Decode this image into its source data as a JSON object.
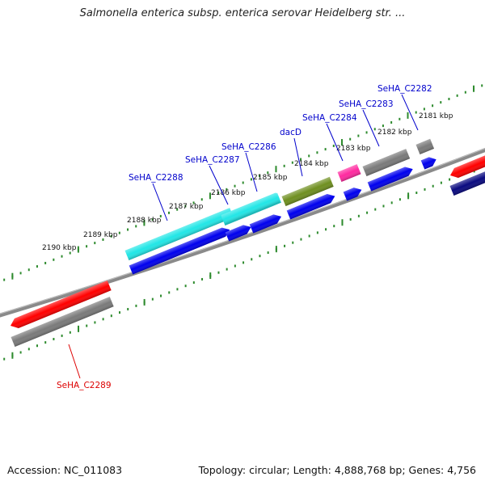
{
  "title": "Salmonella enterica subsp. enterica serovar Heidelberg str. ...",
  "footer": {
    "accession": "Accession: NC_011083",
    "summary": "Topology: circular; Length: 4,888,768 bp; Genes: 4,756"
  },
  "colors": {
    "backbone": "#8a8a8a",
    "ticks": "#2e8b2e",
    "label_line_forward": "#0000cc",
    "label_line_reverse": "#dd0000"
  },
  "tick_labels": [
    "2181 kbp",
    "2182 kbp",
    "2183 kbp",
    "2184 kbp",
    "2185 kbp",
    "2186 kbp",
    "2187 kbp",
    "2188 kbp",
    "2189 kbp",
    "2190 kbp"
  ],
  "genes": [
    {
      "label": "SeHA_C2282",
      "strand": "forward",
      "cds_color": "#7a7a7a",
      "feature_color": "#0000ee"
    },
    {
      "label": "SeHA_C2283",
      "strand": "forward",
      "cds_color": "#7a7a7a",
      "feature_color": "#0000ee"
    },
    {
      "label": "SeHA_C2284",
      "strand": "forward",
      "cds_color": "#ff2aa0",
      "feature_color": "#0000ee"
    },
    {
      "label": "dacD",
      "strand": "forward",
      "cds_color": "#6f8f20",
      "feature_color": "#0000ee"
    },
    {
      "label": "SeHA_C2286",
      "strand": "forward",
      "cds_color": "#22e6e6",
      "feature_color": "#0000ee"
    },
    {
      "label": "SeHA_C2287",
      "strand": "forward",
      "cds_color": "#22e6e6",
      "feature_color": "#0000ee"
    },
    {
      "label": "SeHA_C2288",
      "strand": "forward",
      "cds_color": "#22e6e6",
      "feature_color": "#0000ee"
    },
    {
      "label": "SeHA_C2289",
      "strand": "reverse",
      "cds_color": "#7a7a7a",
      "feature_color": "#ff0000"
    },
    {
      "label": "",
      "strand": "reverse",
      "cds_color": "#0a0a80",
      "feature_color": "#ff0000"
    }
  ]
}
